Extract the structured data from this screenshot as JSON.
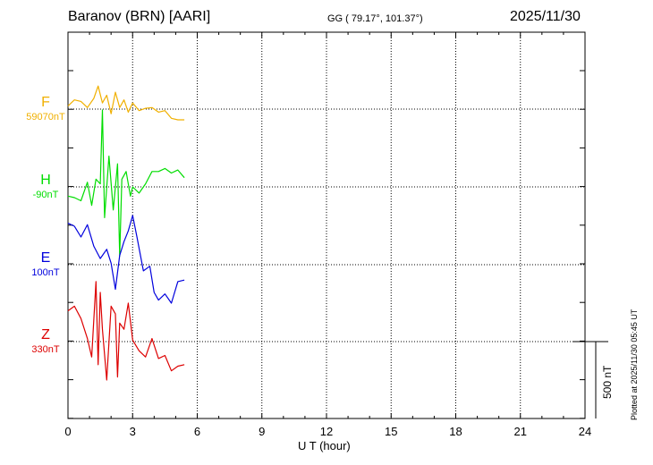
{
  "header": {
    "station": "Baranov (BRN)  [AARI]",
    "coords": "GG ( 79.17°, 101.37°)",
    "date": "2025/11/30"
  },
  "footer": {
    "plotted": "Plotted at 2025/11/30 05:45 UT"
  },
  "chart_data": {
    "type": "line",
    "xlabel": "U T (hour)",
    "xlim": [
      0,
      24
    ],
    "xticks": [
      0,
      3,
      6,
      9,
      12,
      15,
      18,
      21,
      24
    ],
    "xtick_labels": [
      "0",
      "3",
      "6",
      "9",
      "12",
      "15",
      "18",
      "21",
      "24"
    ],
    "scale_bar": {
      "label": "500 nT",
      "value": 500
    },
    "series": [
      {
        "name": "F",
        "baseline": "59070nT",
        "color": "#f0b000",
        "x": [
          0,
          0.3,
          0.6,
          0.9,
          1.2,
          1.4,
          1.6,
          1.8,
          2.0,
          2.2,
          2.4,
          2.6,
          2.8,
          3.0,
          3.3,
          3.6,
          3.9,
          4.2,
          4.5,
          4.8,
          5.1,
          5.4
        ],
        "y": [
          20,
          60,
          50,
          10,
          70,
          150,
          40,
          90,
          -30,
          110,
          10,
          60,
          -20,
          40,
          -10,
          5,
          10,
          -20,
          -10,
          -60,
          -70,
          -70
        ]
      },
      {
        "name": "H",
        "baseline": "-90nT",
        "color": "#00dd00",
        "x": [
          0,
          0.3,
          0.6,
          0.9,
          1.1,
          1.3,
          1.5,
          1.6,
          1.7,
          1.9,
          2.1,
          2.3,
          2.4,
          2.5,
          2.7,
          2.9,
          3.0,
          3.3,
          3.6,
          3.9,
          4.2,
          4.5,
          4.8,
          5.1,
          5.4
        ],
        "y": [
          -60,
          -70,
          -90,
          30,
          -120,
          50,
          20,
          500,
          -200,
          200,
          -150,
          150,
          -450,
          50,
          100,
          -60,
          0,
          -40,
          20,
          100,
          100,
          120,
          90,
          110,
          60
        ]
      },
      {
        "name": "E",
        "baseline": "100nT",
        "color": "#0000dd",
        "x": [
          0,
          0.3,
          0.6,
          0.9,
          1.2,
          1.5,
          1.8,
          2.0,
          2.2,
          2.4,
          2.6,
          2.8,
          3.0,
          3.2,
          3.5,
          3.8,
          4.0,
          4.2,
          4.5,
          4.8,
          5.1,
          5.4
        ],
        "y": [
          270,
          250,
          180,
          260,
          120,
          40,
          100,
          10,
          -160,
          60,
          150,
          220,
          320,
          180,
          -40,
          -10,
          -180,
          -230,
          -190,
          -250,
          -110,
          -100
        ]
      },
      {
        "name": "Z",
        "baseline": "330nT",
        "color": "#dd0000",
        "x": [
          0,
          0.3,
          0.6,
          0.9,
          1.1,
          1.3,
          1.4,
          1.5,
          1.6,
          1.8,
          2.0,
          2.2,
          2.3,
          2.4,
          2.6,
          2.8,
          3.0,
          3.3,
          3.6,
          3.9,
          4.2,
          4.5,
          4.8,
          5.1,
          5.4
        ],
        "y": [
          200,
          230,
          150,
          20,
          -100,
          390,
          -150,
          320,
          80,
          -250,
          230,
          180,
          -230,
          120,
          80,
          250,
          10,
          -60,
          -100,
          20,
          -110,
          -90,
          -190,
          -160,
          -150
        ]
      }
    ]
  }
}
